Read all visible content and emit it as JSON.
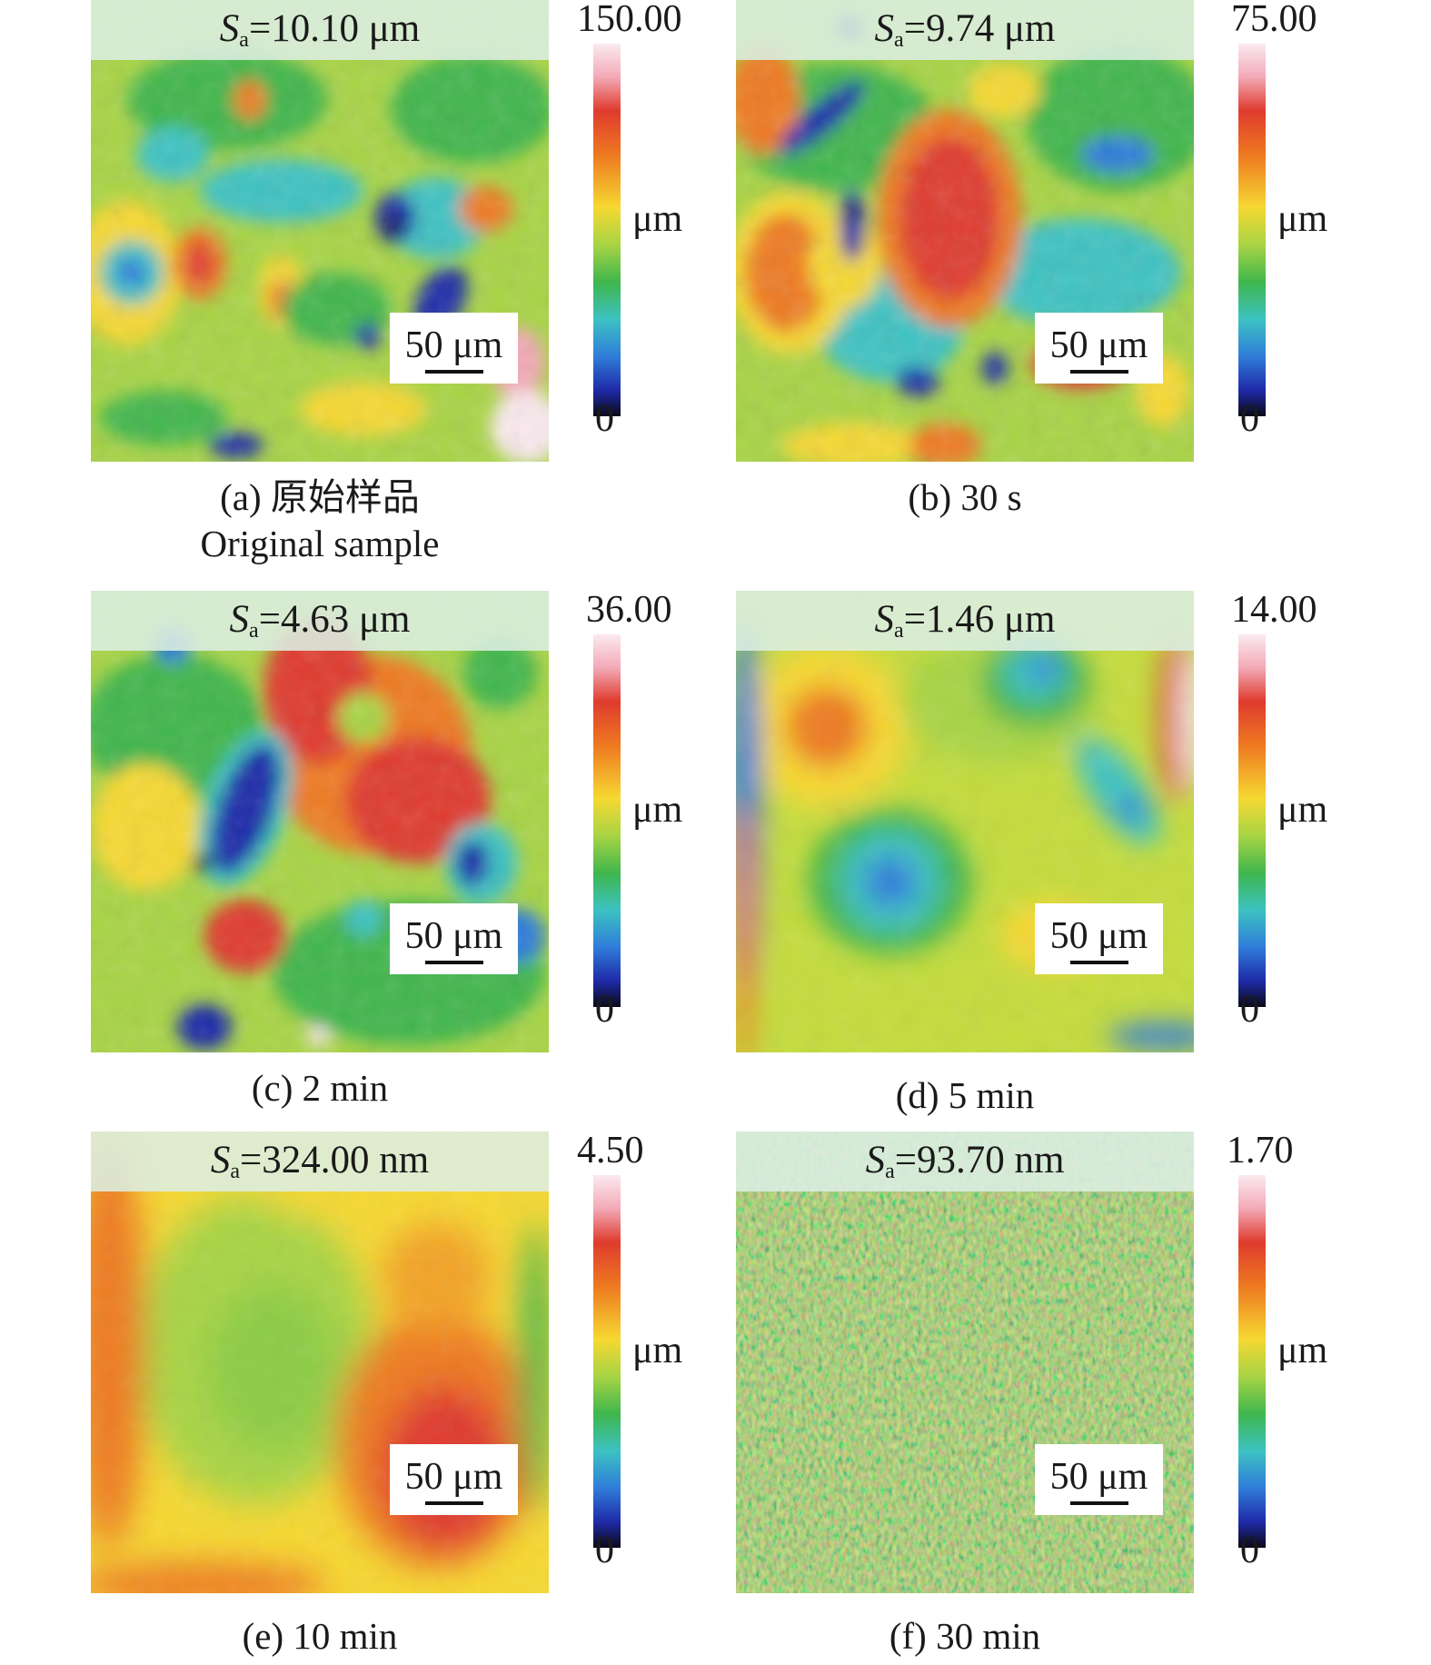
{
  "figure": {
    "panels": [
      {
        "id": "a",
        "sa_symbol": "S",
        "sa_sub": "a",
        "sa_value": "=10.10 μm",
        "cbar_max": "150.00",
        "cbar_min": "0",
        "cbar_unit": "μm",
        "scale_label": "50 μm",
        "caption_line1": "(a) 原始样品",
        "caption_line2": "Original sample"
      },
      {
        "id": "b",
        "sa_symbol": "S",
        "sa_sub": "a",
        "sa_value": "=9.74 μm",
        "cbar_max": "75.00",
        "cbar_min": "0",
        "cbar_unit": "μm",
        "scale_label": "50 μm",
        "caption_line1": "(b) 30 s",
        "caption_line2": ""
      },
      {
        "id": "c",
        "sa_symbol": "S",
        "sa_sub": "a",
        "sa_value": "=4.63 μm",
        "cbar_max": "36.00",
        "cbar_min": "0",
        "cbar_unit": "μm",
        "scale_label": "50 μm",
        "caption_line1": "(c) 2 min",
        "caption_line2": ""
      },
      {
        "id": "d",
        "sa_symbol": "S",
        "sa_sub": "a",
        "sa_value": "=1.46 μm",
        "cbar_max": "14.00",
        "cbar_min": "0",
        "cbar_unit": "μm",
        "scale_label": "50 μm",
        "caption_line1": "(d) 5 min",
        "caption_line2": ""
      },
      {
        "id": "e",
        "sa_symbol": "S",
        "sa_sub": "a",
        "sa_value": "=324.00 nm",
        "cbar_max": "4.50",
        "cbar_min": "0",
        "cbar_unit": "μm",
        "scale_label": "50 μm",
        "caption_line1": "(e) 10 min",
        "caption_line2": ""
      },
      {
        "id": "f",
        "sa_symbol": "S",
        "sa_sub": "a",
        "sa_value": "=93.70 nm",
        "cbar_max": "1.70",
        "cbar_min": "0",
        "cbar_unit": "μm",
        "scale_label": "50 μm",
        "caption_line1": "(f) 30 min",
        "caption_line2": ""
      }
    ]
  },
  "colors": {
    "white": "#fbeaf0",
    "pink": "#f3a9b6",
    "red": "#df3b2e",
    "orange": "#ee7a20",
    "yellow": "#f6d832",
    "yellow_green": "#a8d444",
    "green": "#3fb64c",
    "cyan": "#3cc2c2",
    "blue": "#2f7cd9",
    "dark_blue": "#1f2aa8",
    "black": "#0a0a18"
  }
}
